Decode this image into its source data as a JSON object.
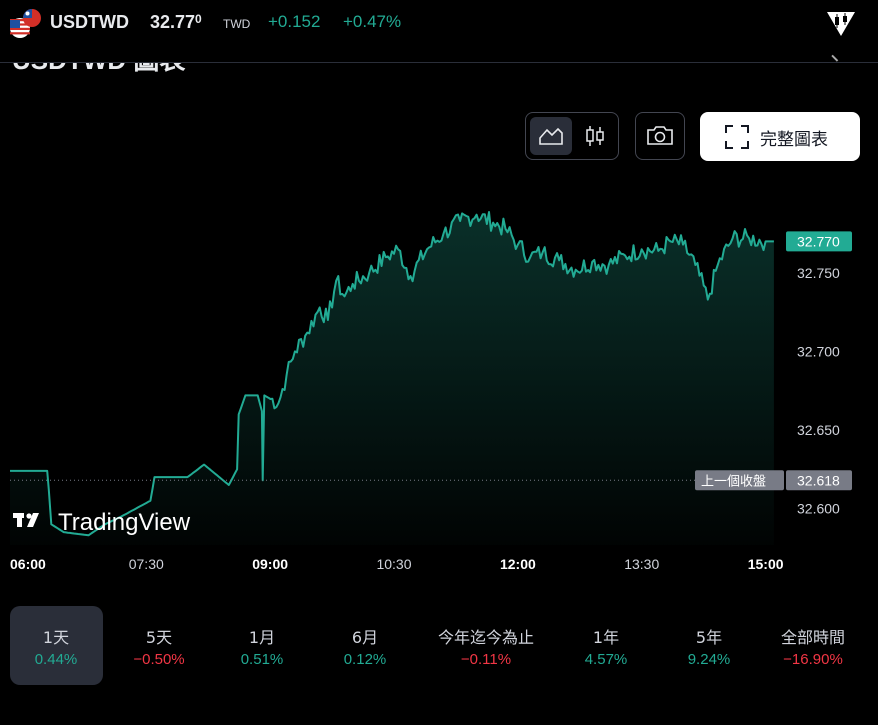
{
  "header": {
    "symbol": "USDTWD",
    "price_main": "32.77",
    "price_sup": "0",
    "currency": "TWD",
    "change": "+0.152",
    "change_percent": "+0.47%"
  },
  "section_title": "USDTWD 圖表",
  "chart_controls": {
    "full_chart_label": "完整圖表",
    "icons": [
      "area-chart-icon",
      "candles-icon",
      "camera-icon",
      "fullscreen-icon"
    ]
  },
  "colors": {
    "accent": "#22ab94",
    "negative": "#f23645",
    "background": "#000000"
  },
  "watermark": "TradingView",
  "chart_data": {
    "type": "area",
    "x_ticks": [
      "06:00",
      "07:30",
      "09:00",
      "10:30",
      "12:00",
      "13:30",
      "15:00"
    ],
    "x_ticks_bold": [
      "06:00",
      "09:00",
      "12:00",
      "15:00"
    ],
    "y_ticks": [
      "32.750",
      "32.700",
      "32.650",
      "32.600"
    ],
    "last_price_label": "32.770",
    "prev_close_label": "32.618",
    "prev_close_text": "上一個收盤",
    "prev_close": 32.618,
    "last_price": 32.77,
    "ylim": [
      32.58,
      32.79
    ],
    "x_hours": [
      5.85,
      15.15
    ],
    "series": [
      {
        "points": [
          [
            5.85,
            32.624
          ],
          [
            6.3,
            32.624
          ],
          [
            6.32,
            32.612
          ],
          [
            6.35,
            32.59
          ],
          [
            6.5,
            32.585
          ],
          [
            6.8,
            32.583
          ],
          [
            7.0,
            32.59
          ],
          [
            7.2,
            32.595
          ],
          [
            7.55,
            32.605
          ],
          [
            7.6,
            32.62
          ],
          [
            8.0,
            32.62
          ],
          [
            8.2,
            32.628
          ],
          [
            8.5,
            32.615
          ],
          [
            8.6,
            32.625
          ],
          [
            8.62,
            32.66
          ],
          [
            8.7,
            32.672
          ],
          [
            8.85,
            32.672
          ],
          [
            8.9,
            32.662
          ],
          [
            8.91,
            32.618
          ],
          [
            8.93,
            32.672
          ],
          [
            9.1,
            32.667
          ],
          [
            9.2,
            32.685
          ],
          [
            9.3,
            32.7
          ],
          [
            9.45,
            32.712
          ],
          [
            9.6,
            32.728
          ],
          [
            9.7,
            32.72
          ],
          [
            9.8,
            32.745
          ],
          [
            9.9,
            32.735
          ],
          [
            10.0,
            32.743
          ],
          [
            10.2,
            32.75
          ],
          [
            10.4,
            32.76
          ],
          [
            10.55,
            32.765
          ],
          [
            10.7,
            32.748
          ],
          [
            10.9,
            32.765
          ],
          [
            11.1,
            32.775
          ],
          [
            11.3,
            32.783
          ],
          [
            11.5,
            32.787
          ],
          [
            11.7,
            32.782
          ],
          [
            11.85,
            32.778
          ],
          [
            12.0,
            32.768
          ],
          [
            12.15,
            32.76
          ],
          [
            12.3,
            32.763
          ],
          [
            12.5,
            32.758
          ],
          [
            12.7,
            32.752
          ],
          [
            12.9,
            32.757
          ],
          [
            13.1,
            32.755
          ],
          [
            13.3,
            32.761
          ],
          [
            13.5,
            32.765
          ],
          [
            13.7,
            32.764
          ],
          [
            13.85,
            32.77
          ],
          [
            14.0,
            32.768
          ],
          [
            14.15,
            32.755
          ],
          [
            14.3,
            32.733
          ],
          [
            14.42,
            32.755
          ],
          [
            14.6,
            32.772
          ],
          [
            14.8,
            32.772
          ],
          [
            15.0,
            32.77
          ],
          [
            15.1,
            32.77
          ]
        ]
      }
    ]
  },
  "ranges": [
    {
      "label": "1天",
      "value": "0.44%",
      "tone": "pos",
      "active": true
    },
    {
      "label": "5天",
      "value": "−0.50%",
      "tone": "neg",
      "active": false
    },
    {
      "label": "1月",
      "value": "0.51%",
      "tone": "pos",
      "active": false
    },
    {
      "label": "6月",
      "value": "0.12%",
      "tone": "pos",
      "active": false
    },
    {
      "label": "今年迄今為止",
      "value": "−0.11%",
      "tone": "neg",
      "active": false
    },
    {
      "label": "1年",
      "value": "4.57%",
      "tone": "pos",
      "active": false
    },
    {
      "label": "5年",
      "value": "9.24%",
      "tone": "pos",
      "active": false
    },
    {
      "label": "全部時間",
      "value": "−16.90%",
      "tone": "neg",
      "active": false
    }
  ]
}
